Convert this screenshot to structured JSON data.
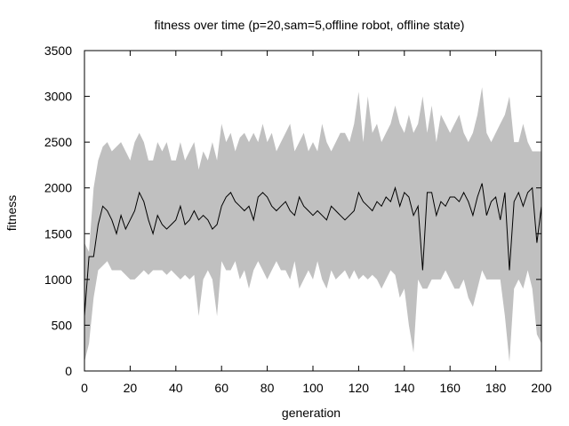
{
  "chart_data": {
    "type": "area",
    "title": "fitness over time (p=20,sam=5,offline robot, offline state)",
    "xlabel": "generation",
    "ylabel": "fitness",
    "xlim": [
      0,
      200
    ],
    "ylim": [
      0,
      3500
    ],
    "xticks": [
      0,
      20,
      40,
      60,
      80,
      100,
      120,
      140,
      160,
      180,
      200
    ],
    "yticks": [
      0,
      500,
      1000,
      1500,
      2000,
      2500,
      3000,
      3500
    ],
    "grid": false,
    "legend": "none",
    "colors": {
      "band": "#c0c0c0",
      "line": "#000000",
      "axis": "#000000",
      "background": "#ffffff"
    },
    "x": [
      0,
      2,
      4,
      6,
      8,
      10,
      12,
      14,
      16,
      18,
      20,
      22,
      24,
      26,
      28,
      30,
      32,
      34,
      36,
      38,
      40,
      42,
      44,
      46,
      48,
      50,
      52,
      54,
      56,
      58,
      60,
      62,
      64,
      66,
      68,
      70,
      72,
      74,
      76,
      78,
      80,
      82,
      84,
      86,
      88,
      90,
      92,
      94,
      96,
      98,
      100,
      102,
      104,
      106,
      108,
      110,
      112,
      114,
      116,
      118,
      120,
      122,
      124,
      126,
      128,
      130,
      132,
      134,
      136,
      138,
      140,
      142,
      144,
      146,
      148,
      150,
      152,
      154,
      156,
      158,
      160,
      162,
      164,
      166,
      168,
      170,
      172,
      174,
      176,
      178,
      180,
      182,
      184,
      186,
      188,
      190,
      192,
      194,
      196,
      198,
      200
    ],
    "series": [
      {
        "role": "band-upper",
        "values": [
          1400,
          1300,
          2000,
          2300,
          2450,
          2500,
          2400,
          2450,
          2500,
          2400,
          2300,
          2500,
          2600,
          2500,
          2300,
          2300,
          2500,
          2400,
          2500,
          2300,
          2300,
          2500,
          2300,
          2400,
          2500,
          2200,
          2400,
          2300,
          2500,
          2300,
          2700,
          2500,
          2600,
          2400,
          2550,
          2600,
          2500,
          2600,
          2500,
          2700,
          2500,
          2600,
          2400,
          2500,
          2600,
          2700,
          2400,
          2500,
          2600,
          2400,
          2500,
          2400,
          2700,
          2500,
          2400,
          2500,
          2600,
          2600,
          2500,
          2700,
          3050,
          2500,
          3000,
          2600,
          2700,
          2500,
          2600,
          2700,
          2900,
          2700,
          2600,
          2800,
          2600,
          2700,
          3000,
          2600,
          2900,
          2500,
          2800,
          2700,
          2600,
          2700,
          2800,
          2600,
          2500,
          2600,
          2800,
          3100,
          2600,
          2500,
          2600,
          2700,
          2800,
          3000,
          2500,
          2500,
          2700,
          2500,
          2400,
          2400,
          2400
        ]
      },
      {
        "role": "band-lower",
        "values": [
          100,
          300,
          800,
          1100,
          1150,
          1200,
          1100,
          1100,
          1100,
          1050,
          1000,
          1000,
          1050,
          1100,
          1050,
          1100,
          1100,
          1100,
          1050,
          1100,
          1050,
          1000,
          1050,
          1000,
          1050,
          600,
          1000,
          1100,
          1000,
          600,
          1200,
          1100,
          1100,
          1200,
          1000,
          1100,
          900,
          1100,
          1200,
          1100,
          1000,
          1100,
          1200,
          1100,
          1100,
          1000,
          1200,
          900,
          1000,
          1100,
          1000,
          1200,
          1000,
          900,
          1100,
          1000,
          1050,
          1100,
          1000,
          1100,
          1000,
          1050,
          1000,
          1050,
          1000,
          900,
          1000,
          1100,
          1050,
          800,
          900,
          500,
          200,
          1000,
          900,
          900,
          1000,
          1000,
          1000,
          1100,
          1000,
          900,
          900,
          1000,
          800,
          700,
          900,
          1100,
          1000,
          1000,
          1000,
          1000,
          600,
          100,
          900,
          1000,
          900,
          1100,
          900,
          400,
          300
        ]
      },
      {
        "role": "mean",
        "values": [
          600,
          1250,
          1250,
          1600,
          1800,
          1750,
          1650,
          1500,
          1700,
          1550,
          1650,
          1750,
          1950,
          1850,
          1650,
          1500,
          1700,
          1600,
          1550,
          1600,
          1650,
          1800,
          1600,
          1650,
          1750,
          1650,
          1700,
          1650,
          1550,
          1600,
          1800,
          1900,
          1950,
          1850,
          1800,
          1750,
          1800,
          1650,
          1900,
          1950,
          1900,
          1800,
          1750,
          1800,
          1850,
          1750,
          1700,
          1900,
          1800,
          1750,
          1700,
          1750,
          1700,
          1650,
          1800,
          1750,
          1700,
          1650,
          1700,
          1750,
          1950,
          1850,
          1800,
          1750,
          1850,
          1800,
          1900,
          1850,
          2000,
          1800,
          1950,
          1900,
          1700,
          1800,
          1100,
          1950,
          1950,
          1700,
          1850,
          1800,
          1900,
          1900,
          1850,
          1950,
          1850,
          1700,
          1900,
          2050,
          1700,
          1850,
          1900,
          1650,
          1950,
          1100,
          1850,
          1950,
          1800,
          1950,
          2000,
          1400,
          1800
        ]
      }
    ]
  }
}
